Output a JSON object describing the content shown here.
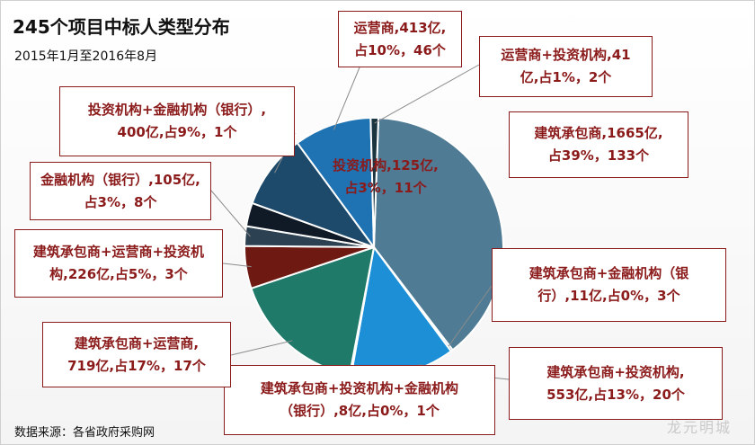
{
  "title": "245个项目中标人类型分布",
  "subtitle": "2015年1月至2016年8月",
  "source": "数据来源：各省政府采购网",
  "watermark": "龙元明城",
  "chart_data": {
    "type": "pie",
    "title": "245个项目中标人类型分布",
    "subtitle": "2015年1月至2016年8月",
    "unit": "亿",
    "slices": [
      {
        "name": "建筑承包商",
        "value": 1665,
        "percent": 39,
        "count": 133,
        "color": "#4f7b94",
        "label": "建筑承包商,1665亿,占39%，133个"
      },
      {
        "name": "建筑承包商+金融机构（银行）",
        "value": 11,
        "percent": 0,
        "count": 3,
        "color": "#3e6880",
        "label": "建筑承包商+金融机构（银行）,11亿,占0%，3个"
      },
      {
        "name": "建筑承包商+投资机构",
        "value": 553,
        "percent": 13,
        "count": 20,
        "color": "#1c8fd6",
        "label": "建筑承包商+投资机构,553亿,占13%，20个"
      },
      {
        "name": "建筑承包商+投资机构+金融机构（银行）",
        "value": 8,
        "percent": 0,
        "count": 1,
        "color": "#1d6f6a",
        "label": "建筑承包商+投资机构+金融机构（银行）,8亿,占0%，1个"
      },
      {
        "name": "建筑承包商+运营商",
        "value": 719,
        "percent": 17,
        "count": 17,
        "color": "#1f7a6a",
        "label": "建筑承包商+运营商,719亿,占17%，17个"
      },
      {
        "name": "建筑承包商+运营商+投资机构",
        "value": 226,
        "percent": 5,
        "count": 3,
        "color": "#6e1a12",
        "label": "建筑承包商+运营商+投资机构,226亿,占5%，3个"
      },
      {
        "name": "金融机构（银行）",
        "value": 105,
        "percent": 3,
        "count": 8,
        "color": "#2c4152",
        "label": "金融机构（银行）,105亿,占3%，8个"
      },
      {
        "name": "投资机构",
        "value": 125,
        "percent": 3,
        "count": 11,
        "color": "#0f1a26",
        "label": "投资机构,125亿,占3%，11个"
      },
      {
        "name": "投资机构+金融机构（银行）",
        "value": 400,
        "percent": 9,
        "count": 1,
        "color": "#1d4a6b",
        "label": "投资机构+金融机构（银行）,400亿,占9%，1个"
      },
      {
        "name": "运营商",
        "value": 413,
        "percent": 10,
        "count": 46,
        "color": "#1f73b3",
        "label": "运营商,413亿,占10%，46个"
      },
      {
        "name": "运营商+投资机构",
        "value": 41,
        "percent": 1,
        "count": 2,
        "color": "#1a3540",
        "label": "运营商+投资机构,41亿,占1%，2个"
      }
    ]
  },
  "labels": {
    "l0": [
      "建筑承包商,1665亿,",
      "占39%，133个"
    ],
    "l1": [
      "建筑承包商+金融机构（银",
      "行）,11亿,占0%，3个"
    ],
    "l2": [
      "建筑承包商+投资机构,",
      "553亿,占13%，20个"
    ],
    "l3": [
      "建筑承包商+投资机构+金融机构",
      "（银行）,8亿,占0%，1个"
    ],
    "l4": [
      "建筑承包商+运营商,",
      "719亿,占17%，17个"
    ],
    "l5": [
      "建筑承包商+运营商+投资机",
      "构,226亿,占5%，3个"
    ],
    "l6": [
      "金融机构（银行）,105亿,",
      "占3%，8个"
    ],
    "l7": [
      "投资机构,125亿,",
      "占3%，11个"
    ],
    "l8": [
      "投资机构+金融机构（银行）,",
      "400亿,占9%，1个"
    ],
    "l9": [
      "运营商,413亿,",
      "占10%，46个"
    ],
    "l10": [
      "运营商+投资机构,41",
      "亿,占1%，2个"
    ]
  }
}
